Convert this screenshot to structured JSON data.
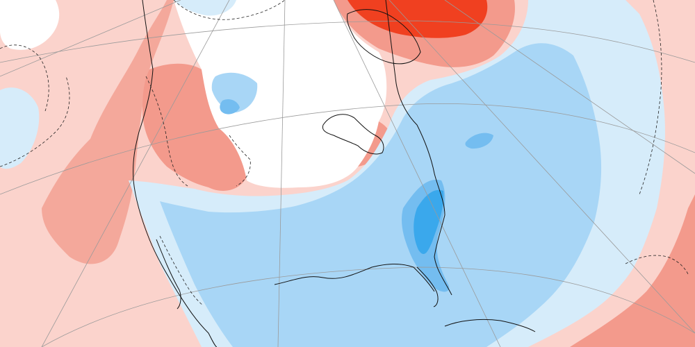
{
  "map": {
    "projection": "polar-stereographic",
    "field": "anomaly",
    "region": "North America",
    "colors": {
      "background": "#ffffff",
      "warm_light": "#fbd3cc",
      "warm_medium": "#f39a8c",
      "warm_strong": "#f06a4f",
      "warm_extreme": "#f04020",
      "cool_light": "#d6ecfa",
      "cool_medium": "#a8d6f6",
      "cool_strong": "#74bdf0",
      "cool_extreme": "#3aa8ec",
      "coastline": "#111111",
      "graticule": "#9a9a9a"
    },
    "legend_levels": [
      {
        "category": "cool_extreme"
      },
      {
        "category": "cool_strong"
      },
      {
        "category": "cool_medium"
      },
      {
        "category": "cool_light"
      },
      {
        "category": "neutral"
      },
      {
        "category": "warm_light"
      },
      {
        "category": "warm_medium"
      },
      {
        "category": "warm_strong"
      },
      {
        "category": "warm_extreme"
      }
    ]
  }
}
